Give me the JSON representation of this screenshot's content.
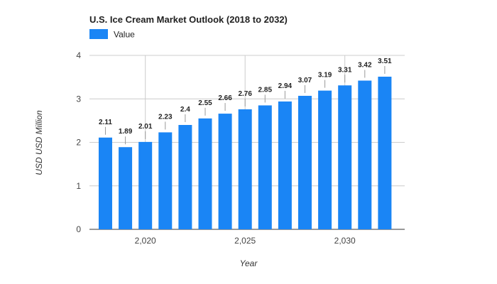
{
  "chart_data": {
    "type": "bar",
    "title": "U.S. Ice Cream Market Outlook (2018 to 2032)",
    "xlabel": "Year",
    "ylabel": "USD USD Million",
    "series": [
      {
        "name": "Value",
        "color": "#1a85f5",
        "x": [
          2018,
          2019,
          2020,
          2021,
          2022,
          2023,
          2024,
          2025,
          2026,
          2027,
          2028,
          2029,
          2030,
          2031,
          2032
        ],
        "values": [
          2.11,
          1.89,
          2.01,
          2.23,
          2.4,
          2.55,
          2.66,
          2.76,
          2.85,
          2.94,
          3.07,
          3.19,
          3.31,
          3.42,
          3.51
        ],
        "labels": [
          "2.11",
          "1.89",
          "2.01",
          "2.23",
          "2.4",
          "2.55",
          "2.66",
          "2.76",
          "2.85",
          "2.94",
          "3.07",
          "3.19",
          "3.31",
          "3.42",
          "3.51"
        ]
      }
    ],
    "ylim": [
      0,
      4
    ],
    "yticks": [
      0,
      1,
      2,
      3,
      4
    ],
    "ytick_labels": [
      "0",
      "1",
      "2",
      "3",
      "4"
    ],
    "xticks": [
      2020,
      2025,
      2030
    ],
    "xtick_labels": [
      "2,020",
      "2,025",
      "2,030"
    ],
    "grid": true,
    "legend_position": "top-left"
  }
}
